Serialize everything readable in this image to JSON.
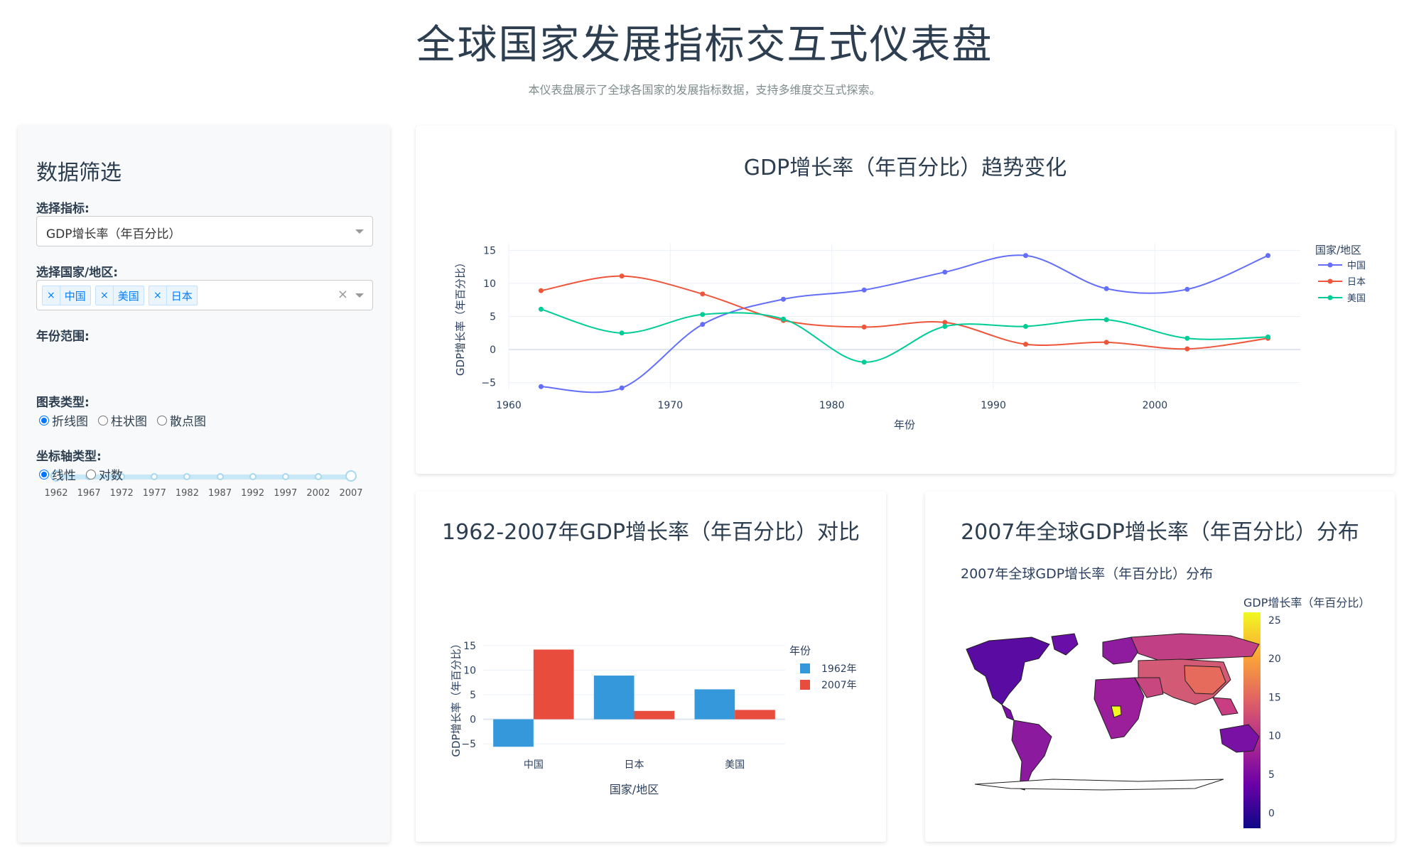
{
  "header": {
    "title": "全球国家发展指标交互式仪表盘",
    "subtitle": "本仪表盘展示了全球各国家的发展指标数据，支持多维度交互式探索。"
  },
  "filters": {
    "heading": "数据筛选",
    "indicator_label": "选择指标:",
    "indicator_value": "GDP增长率（年百分比）",
    "countries_label": "选择国家/地区:",
    "countries": [
      "中国",
      "美国",
      "日本"
    ],
    "year_label": "年份范围:",
    "year_marks": [
      "1962",
      "1967",
      "1972",
      "1977",
      "1982",
      "1987",
      "1992",
      "1997",
      "2002",
      "2007"
    ],
    "chart_type_label": "图表类型:",
    "chart_types": [
      "折线图",
      "柱状图",
      "散点图"
    ],
    "chart_type_selected": "折线图",
    "axis_type_label": "坐标轴类型:",
    "axis_types": [
      "线性",
      "对数"
    ],
    "axis_type_selected": "线性"
  },
  "line_card": {
    "title": "GDP增长率（年百分比）趋势变化"
  },
  "bar_card": {
    "title": "1962-2007年GDP增长率（年百分比）对比"
  },
  "map_card": {
    "title": "2007年全球GDP增长率（年百分比）分布",
    "inner_title": "2007年全球GDP增长率（年百分比）分布",
    "colorbar_title": "GDP增长率（年百分比）",
    "colorbar_ticks": [
      "25",
      "20",
      "15",
      "10",
      "5",
      "0"
    ],
    "colorbar_range": [
      -2,
      26
    ],
    "colorscale": [
      "#0d0887",
      "#6a00a8",
      "#b12a90",
      "#e16462",
      "#fca636",
      "#f0f921"
    ]
  },
  "chart_data": [
    {
      "type": "line",
      "xlabel": "年份",
      "ylabel": "GDP增长率（年百分比）",
      "xlim": [
        1960,
        2009
      ],
      "ylim": [
        -6,
        16
      ],
      "xticks": [
        1960,
        1970,
        1980,
        1990,
        2000
      ],
      "yticks": [
        -5,
        0,
        5,
        10,
        15
      ],
      "x": [
        1962,
        1967,
        1972,
        1977,
        1982,
        1987,
        1992,
        1997,
        2002,
        2007
      ],
      "legend_title": "国家/地区",
      "legend_position": "right",
      "grid": true,
      "series": [
        {
          "name": "中国",
          "color": "#636efa",
          "values": [
            -5.6,
            -5.8,
            3.8,
            7.6,
            9.0,
            11.7,
            14.2,
            9.2,
            9.1,
            14.2
          ]
        },
        {
          "name": "日本",
          "color": "#ef553b",
          "values": [
            8.9,
            11.1,
            8.4,
            4.4,
            3.4,
            4.1,
            0.8,
            1.1,
            0.1,
            1.7
          ]
        },
        {
          "name": "美国",
          "color": "#00cc96",
          "values": [
            6.1,
            2.5,
            5.3,
            4.6,
            -1.9,
            3.5,
            3.5,
            4.5,
            1.7,
            1.9
          ]
        }
      ]
    },
    {
      "type": "bar",
      "xlabel": "国家/地区",
      "ylabel": "GDP增长率（年百分比）",
      "categories": [
        "中国",
        "日本",
        "美国"
      ],
      "ylim": [
        -6,
        16
      ],
      "yticks": [
        -5,
        0,
        5,
        10,
        15
      ],
      "legend_title": "年份",
      "legend_position": "right",
      "series": [
        {
          "name": "1962年",
          "color": "#3498db",
          "values": [
            -5.6,
            8.9,
            6.1
          ]
        },
        {
          "name": "2007年",
          "color": "#e74c3c",
          "values": [
            14.2,
            1.7,
            1.9
          ]
        }
      ]
    }
  ]
}
